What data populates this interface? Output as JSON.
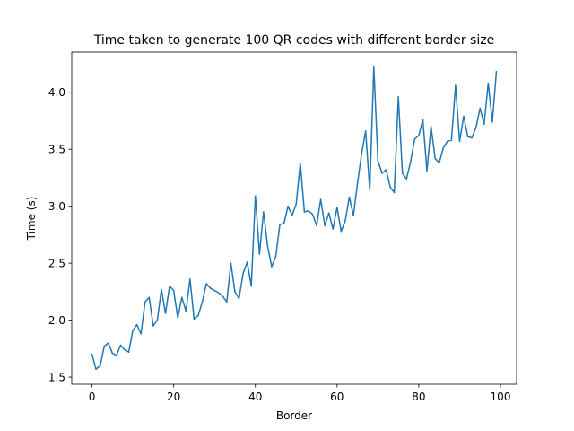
{
  "chart_data": {
    "type": "line",
    "title": "Time taken to generate 100 QR codes with different border size",
    "xlabel": "Border",
    "ylabel": "Time (s)",
    "xlim": [
      -4.95,
      103.95
    ],
    "ylim": [
      1.4375,
      4.3525
    ],
    "xticks": [
      0,
      20,
      40,
      60,
      80,
      100
    ],
    "yticks": [
      1.5,
      2.0,
      2.5,
      3.0,
      3.5,
      4.0
    ],
    "ytick_labels": [
      "1.5",
      "2.0",
      "2.5",
      "3.0",
      "3.5",
      "4.0"
    ],
    "grid": false,
    "legend": "none",
    "series": [
      {
        "color": "#1f77b4",
        "x": [
          0,
          1,
          2,
          3,
          4,
          5,
          6,
          7,
          8,
          9,
          10,
          11,
          12,
          13,
          14,
          15,
          16,
          17,
          18,
          19,
          20,
          21,
          22,
          23,
          24,
          25,
          26,
          27,
          28,
          29,
          30,
          31,
          32,
          33,
          34,
          35,
          36,
          37,
          38,
          39,
          40,
          41,
          42,
          43,
          44,
          45,
          46,
          47,
          48,
          49,
          50,
          51,
          52,
          53,
          54,
          55,
          56,
          57,
          58,
          59,
          60,
          61,
          62,
          63,
          64,
          65,
          66,
          67,
          68,
          69,
          70,
          71,
          72,
          73,
          74,
          75,
          76,
          77,
          78,
          79,
          80,
          81,
          82,
          83,
          84,
          85,
          86,
          87,
          88,
          89,
          90,
          91,
          92,
          93,
          94,
          95,
          96,
          97,
          98,
          99
        ],
        "values": [
          1.7,
          1.57,
          1.6,
          1.77,
          1.8,
          1.71,
          1.69,
          1.78,
          1.74,
          1.72,
          1.91,
          1.96,
          1.88,
          2.16,
          2.2,
          1.95,
          2.0,
          2.27,
          2.06,
          2.3,
          2.26,
          2.02,
          2.2,
          2.08,
          2.36,
          2.01,
          2.04,
          2.16,
          2.32,
          2.28,
          2.26,
          2.24,
          2.21,
          2.16,
          2.5,
          2.25,
          2.19,
          2.41,
          2.51,
          2.3,
          3.09,
          2.58,
          2.95,
          2.65,
          2.47,
          2.56,
          2.84,
          2.85,
          3.0,
          2.92,
          3.02,
          3.38,
          2.95,
          2.96,
          2.93,
          2.83,
          3.06,
          2.83,
          2.94,
          2.8,
          2.99,
          2.78,
          2.87,
          3.08,
          2.92,
          3.2,
          3.46,
          3.66,
          3.14,
          4.22,
          3.4,
          3.29,
          3.32,
          3.17,
          3.12,
          3.96,
          3.29,
          3.24,
          3.39,
          3.59,
          3.62,
          3.76,
          3.31,
          3.7,
          3.42,
          3.38,
          3.51,
          3.57,
          3.58,
          4.06,
          3.57,
          3.79,
          3.61,
          3.6,
          3.69,
          3.86,
          3.72,
          4.08,
          3.74,
          4.18
        ]
      }
    ]
  }
}
